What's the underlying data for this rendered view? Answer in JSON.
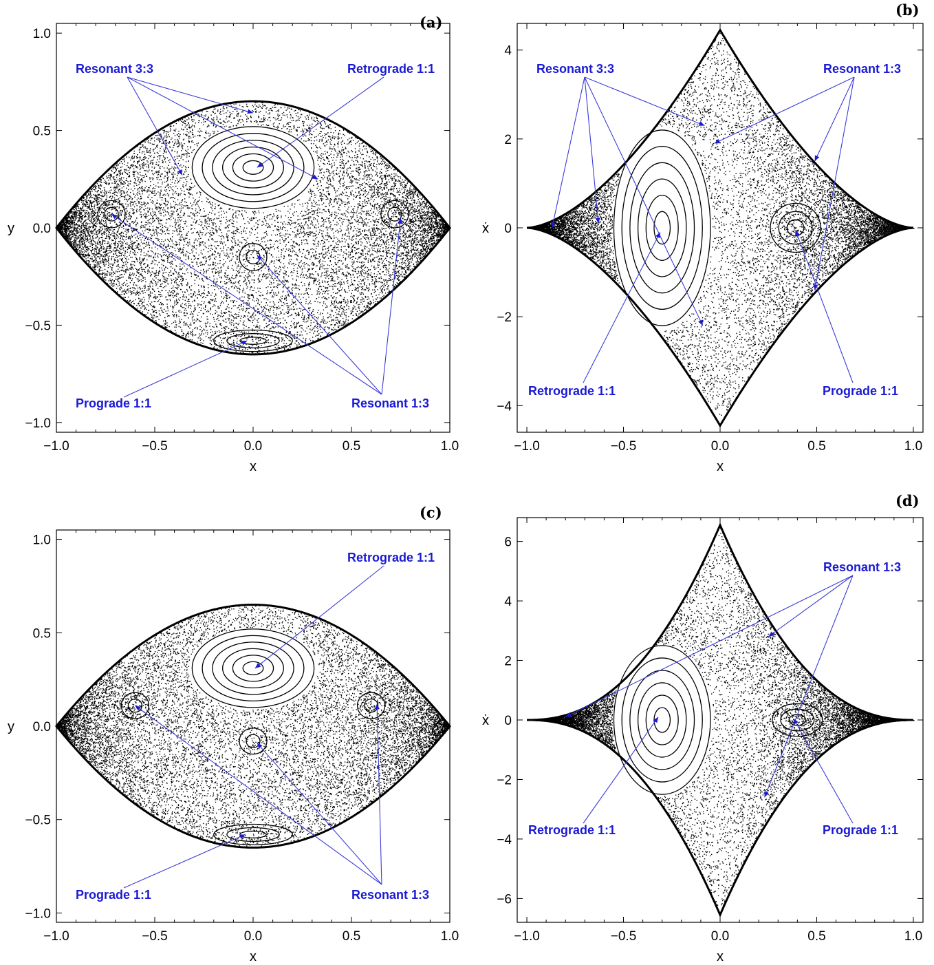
{
  "figure": {
    "panels": [
      "(a)",
      "(b)",
      "(c)",
      "(d)"
    ]
  },
  "chart_data": [
    {
      "type": "scatter",
      "panel": "(a)",
      "xlabel": "x",
      "ylabel": "y",
      "xlim": [
        -1.0,
        1.0
      ],
      "ylim": [
        -1.05,
        1.05
      ],
      "xticks": [
        "−1.0",
        "−0.5",
        "0.0",
        "0.5",
        "1.0"
      ],
      "yticks": [
        "−1.0",
        "−0.5",
        "0.0",
        "0.5",
        "1.0"
      ],
      "grid": false,
      "annotations": [
        {
          "text": "Resonant 3:3",
          "targets": [
            [
              0.0,
              0.59
            ],
            [
              -0.36,
              0.27
            ],
            [
              0.33,
              0.25
            ]
          ]
        },
        {
          "text": "Retrograde 1:1",
          "targets": [
            [
              0.02,
              0.31
            ]
          ]
        },
        {
          "text": "Prograde 1:1",
          "targets": [
            [
              -0.03,
              -0.58
            ]
          ]
        },
        {
          "text": "Resonant 1:3",
          "targets": [
            [
              -0.72,
              0.07
            ],
            [
              0.75,
              0.05
            ],
            [
              0.02,
              -0.14
            ]
          ]
        }
      ],
      "islands": [
        {
          "name": "Retrograde 1:1",
          "center": [
            0.0,
            0.31
          ]
        },
        {
          "name": "Prograde 1:1",
          "center": [
            0.0,
            -0.58
          ]
        },
        {
          "name": "Resonant 1:3",
          "center": [
            -0.72,
            0.07
          ]
        },
        {
          "name": "Resonant 1:3",
          "center": [
            0.72,
            0.07
          ]
        },
        {
          "name": "Resonant 1:3",
          "center": [
            0.0,
            -0.15
          ]
        }
      ]
    },
    {
      "type": "scatter",
      "panel": "(b)",
      "xlabel": "x",
      "ylabel": "ẋ",
      "xlim": [
        -1.05,
        1.05
      ],
      "ylim": [
        -4.6,
        4.6
      ],
      "xticks": [
        "−1.0",
        "−0.5",
        "0.0",
        "0.5",
        "1.0"
      ],
      "yticks": [
        "−4",
        "−2",
        "0",
        "2",
        "4"
      ],
      "grid": false,
      "annotations": [
        {
          "text": "Resonant 3:3",
          "targets": [
            [
              -0.87,
              0.0
            ],
            [
              -0.63,
              0.1
            ],
            [
              -0.08,
              2.3
            ],
            [
              -0.09,
              -2.2
            ]
          ]
        },
        {
          "text": "Resonant 1:3",
          "targets": [
            [
              -0.03,
              1.9
            ],
            [
              0.49,
              1.5
            ],
            [
              0.49,
              -1.4
            ]
          ]
        },
        {
          "text": "Retrograde 1:1",
          "targets": [
            [
              -0.31,
              -0.1
            ]
          ]
        },
        {
          "text": "Prograde 1:1",
          "targets": [
            [
              0.39,
              -0.05
            ]
          ]
        }
      ],
      "islands": [
        {
          "name": "Retrograde 1:1",
          "center": [
            -0.3,
            0.0
          ]
        },
        {
          "name": "Prograde 1:1",
          "center": [
            0.39,
            0.0
          ]
        }
      ]
    },
    {
      "type": "scatter",
      "panel": "(c)",
      "xlabel": "x",
      "ylabel": "y",
      "xlim": [
        -1.0,
        1.0
      ],
      "ylim": [
        -1.05,
        1.05
      ],
      "xticks": [
        "−1.0",
        "−0.5",
        "0.0",
        "0.5",
        "1.0"
      ],
      "yticks": [
        "−1.0",
        "−0.5",
        "0.0",
        "0.5",
        "1.0"
      ],
      "grid": false,
      "annotations": [
        {
          "text": "Retrograde 1:1",
          "targets": [
            [
              0.01,
              0.31
            ]
          ]
        },
        {
          "text": "Prograde 1:1",
          "targets": [
            [
              -0.04,
              -0.58
            ]
          ]
        },
        {
          "text": "Resonant 1:3",
          "targets": [
            [
              -0.6,
              0.11
            ],
            [
              0.63,
              0.12
            ],
            [
              0.02,
              -0.09
            ]
          ]
        }
      ],
      "islands": [
        {
          "name": "Retrograde 1:1",
          "center": [
            0.0,
            0.31
          ]
        },
        {
          "name": "Prograde 1:1",
          "center": [
            0.0,
            -0.58
          ]
        },
        {
          "name": "Resonant 1:3",
          "center": [
            -0.6,
            0.11
          ]
        },
        {
          "name": "Resonant 1:3",
          "center": [
            0.6,
            0.11
          ]
        },
        {
          "name": "Resonant 1:3",
          "center": [
            0.0,
            -0.08
          ]
        }
      ]
    },
    {
      "type": "scatter",
      "panel": "(d)",
      "xlabel": "x",
      "ylabel": "ẋ",
      "xlim": [
        -1.05,
        1.05
      ],
      "ylim": [
        -6.8,
        6.8
      ],
      "xticks": [
        "−1.0",
        "−0.5",
        "0.0",
        "0.5",
        "1.0"
      ],
      "yticks": [
        "−6",
        "−4",
        "−2",
        "0",
        "2",
        "4",
        "6"
      ],
      "grid": false,
      "annotations": [
        {
          "text": "Resonant 1:3",
          "targets": [
            [
              -0.8,
              0.1
            ],
            [
              0.25,
              2.8
            ],
            [
              0.23,
              -2.6
            ]
          ]
        },
        {
          "text": "Retrograde 1:1",
          "targets": [
            [
              -0.32,
              0.1
            ]
          ]
        },
        {
          "text": "Prograde 1:1",
          "targets": [
            [
              0.38,
              0.05
            ]
          ]
        }
      ],
      "islands": [
        {
          "name": "Retrograde 1:1",
          "center": [
            -0.3,
            0.0
          ]
        },
        {
          "name": "Prograde 1:1",
          "center": [
            0.4,
            0.0
          ]
        }
      ]
    }
  ]
}
